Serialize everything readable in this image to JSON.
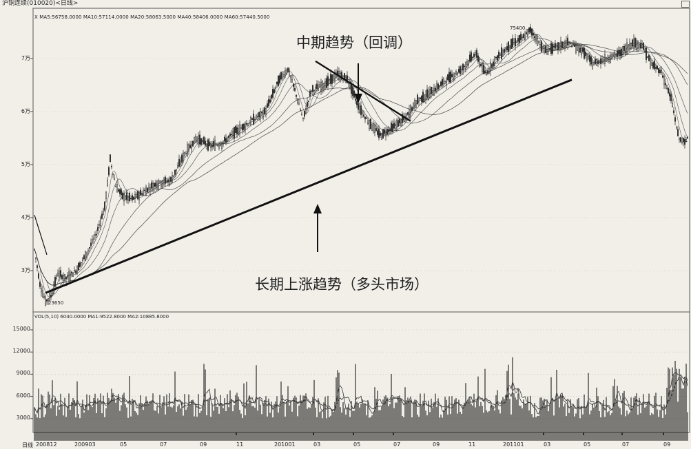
{
  "header": {
    "title": "沪铜连续(010020)<日线>"
  },
  "price_panel": {
    "ma_legend": "X MA5:56758.0000 MA10:57114.0000 MA20:58063.5000 MA40:58406.0000 MA60:57440.5000",
    "peak_label": "75400",
    "low_label": "23650"
  },
  "volume_panel": {
    "legend": "VOL(5,10) 6040.0000 MA1:9522.8000 MA2:10885.8000"
  },
  "annotations": {
    "mid_trend": "中期趋势（回调）",
    "long_trend": "长期上涨趋势（多头市场）"
  },
  "footer": {
    "period_label": "日线"
  },
  "chart_data": [
    {
      "type": "line",
      "title": "沪铜连续(010020)<日线>",
      "series": [
        {
          "name": "",
          "values": []
        }
      ],
      "x_ticks": [
        "200812",
        "200903",
        "05",
        "07",
        "09",
        "11",
        "201001",
        "03",
        "05",
        "07",
        "09",
        "11",
        "201101",
        "03",
        "05",
        "07",
        "09"
      ],
      "y_ticks": [
        "3万",
        "4万",
        "5万",
        "6万",
        "7万"
      ],
      "ylim": [
        22000,
        78000
      ],
      "key_points": {
        "low": 23650,
        "peak": 75400
      }
    },
    {
      "type": "bar",
      "y_ticks": [
        "3000",
        "6000",
        "9000",
        "12000",
        "15000"
      ],
      "ylim": [
        0,
        17000
      ]
    }
  ],
  "colors": {
    "background": "#f2efe9",
    "ink": "#1a1a1a",
    "grid": "#b9b4ad"
  }
}
